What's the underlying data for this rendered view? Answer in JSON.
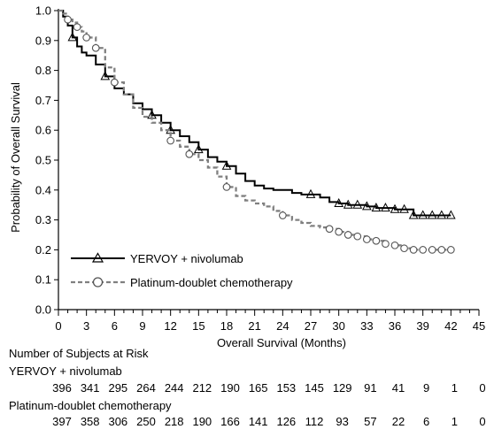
{
  "chart_data": {
    "type": "line",
    "subtype": "kaplan-meier",
    "title": "",
    "xlabel": "Overall Survival (Months)",
    "ylabel": "Probability of Overall Survival",
    "xlim": [
      0,
      45
    ],
    "ylim": [
      0,
      1.0
    ],
    "x_ticks": [
      0,
      3,
      6,
      9,
      12,
      15,
      18,
      21,
      24,
      27,
      30,
      33,
      36,
      39,
      42,
      45
    ],
    "y_ticks": [
      0.0,
      0.1,
      0.2,
      0.3,
      0.4,
      0.5,
      0.6,
      0.7,
      0.8,
      0.9,
      1.0
    ],
    "legend_position": "lower-left",
    "series": [
      {
        "name": "YERVOY + nivolumab",
        "line_style": "solid",
        "marker": "triangle",
        "color": "#000000",
        "x": [
          0,
          0.5,
          1,
          1.5,
          2,
          2.5,
          3,
          4,
          5,
          6,
          7,
          8,
          9,
          10,
          11,
          12,
          13,
          14,
          15,
          16,
          17,
          18,
          19,
          20,
          21,
          22,
          23,
          24,
          25,
          26,
          27,
          28,
          29,
          30,
          31,
          32,
          33,
          34,
          35,
          36,
          37,
          38,
          39,
          40,
          41,
          42
        ],
        "y": [
          1.0,
          0.98,
          0.95,
          0.91,
          0.88,
          0.86,
          0.85,
          0.82,
          0.78,
          0.74,
          0.72,
          0.69,
          0.67,
          0.65,
          0.625,
          0.6,
          0.58,
          0.56,
          0.535,
          0.51,
          0.495,
          0.48,
          0.455,
          0.43,
          0.415,
          0.405,
          0.4,
          0.4,
          0.39,
          0.385,
          0.385,
          0.375,
          0.36,
          0.355,
          0.35,
          0.35,
          0.345,
          0.34,
          0.34,
          0.335,
          0.335,
          0.315,
          0.315,
          0.315,
          0.315,
          0.315
        ],
        "censor_x": [
          1.5,
          5,
          10,
          12,
          15,
          18,
          27,
          30,
          31,
          32,
          33,
          34,
          35,
          36,
          37,
          38,
          39,
          40,
          41,
          42
        ]
      },
      {
        "name": "Platinum-doublet chemotherapy",
        "line_style": "dashed",
        "marker": "circle",
        "color": "#808080",
        "x": [
          0,
          0.5,
          1,
          1.5,
          2,
          2.5,
          3,
          4,
          5,
          6,
          7,
          8,
          9,
          10,
          11,
          12,
          13,
          14,
          15,
          16,
          17,
          18,
          19,
          20,
          21,
          22,
          23,
          24,
          25,
          26,
          27,
          28,
          29,
          30,
          31,
          32,
          33,
          34,
          35,
          36,
          37,
          38,
          39,
          40,
          41,
          42
        ],
        "y": [
          1.0,
          0.99,
          0.97,
          0.96,
          0.945,
          0.93,
          0.91,
          0.875,
          0.81,
          0.76,
          0.72,
          0.675,
          0.645,
          0.625,
          0.6,
          0.565,
          0.545,
          0.52,
          0.5,
          0.475,
          0.445,
          0.41,
          0.38,
          0.365,
          0.355,
          0.345,
          0.33,
          0.315,
          0.3,
          0.29,
          0.28,
          0.275,
          0.27,
          0.26,
          0.25,
          0.245,
          0.235,
          0.23,
          0.22,
          0.215,
          0.205,
          0.2,
          0.2,
          0.2,
          0.2,
          0.2
        ],
        "censor_x": [
          1,
          2,
          3,
          4,
          6,
          12,
          14,
          18,
          24,
          29,
          30,
          31,
          32,
          33,
          34,
          35,
          36,
          37,
          38,
          39,
          40,
          41,
          42
        ]
      }
    ]
  },
  "risk_table": {
    "title": "Number of Subjects at Risk",
    "rows": [
      {
        "label": "YERVOY + nivolumab",
        "values": [
          "396",
          "341",
          "295",
          "264",
          "244",
          "212",
          "190",
          "165",
          "153",
          "145",
          "129",
          "91",
          "41",
          "9",
          "1",
          "0"
        ]
      },
      {
        "label": "Platinum-doublet chemotherapy",
        "values": [
          "397",
          "358",
          "306",
          "250",
          "218",
          "190",
          "166",
          "141",
          "126",
          "112",
          "93",
          "57",
          "22",
          "6",
          "1",
          "0"
        ]
      }
    ]
  }
}
